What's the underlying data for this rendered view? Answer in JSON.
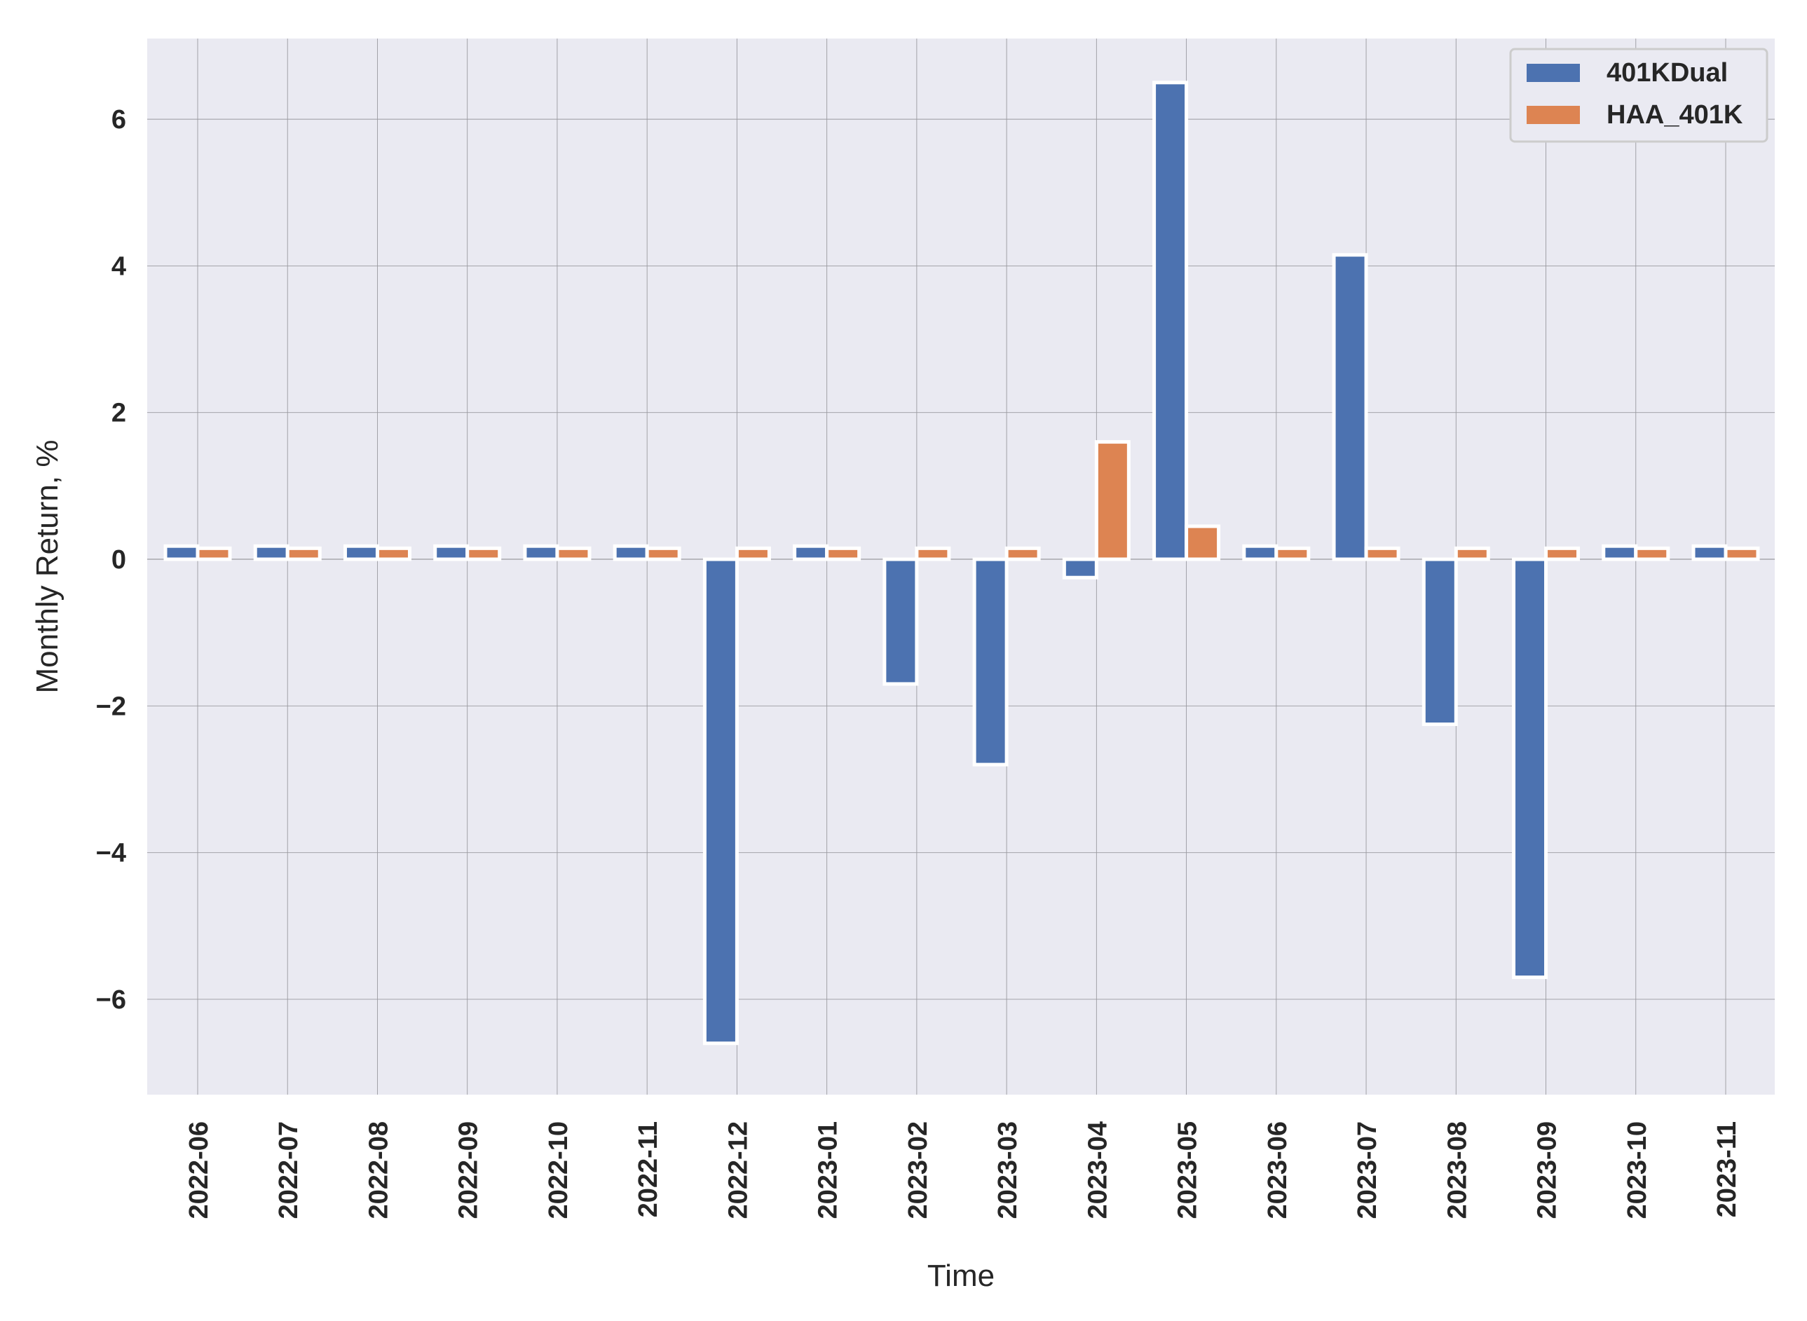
{
  "chart_data": {
    "type": "bar",
    "xlabel": "Time",
    "ylabel": "Monthly Return, %",
    "ylim": [
      -7.3,
      7.1
    ],
    "yticks": [
      -6,
      -4,
      -2,
      0,
      2,
      4,
      6
    ],
    "ytick_labels": [
      "−6",
      "−4",
      "−2",
      "0",
      "2",
      "4",
      "6"
    ],
    "grid": true,
    "legend_position": "top-right",
    "categories": [
      "2022-06",
      "2022-07",
      "2022-08",
      "2022-09",
      "2022-10",
      "2022-11",
      "2022-12",
      "2023-01",
      "2023-02",
      "2023-03",
      "2023-04",
      "2023-05",
      "2023-06",
      "2023-07",
      "2023-08",
      "2023-09",
      "2023-10",
      "2023-11"
    ],
    "series": [
      {
        "name": "401KDual",
        "color": "#4c72b0",
        "values": [
          0.18,
          0.18,
          0.18,
          0.18,
          0.18,
          0.18,
          -6.6,
          0.18,
          -1.7,
          -2.8,
          -0.25,
          6.5,
          0.18,
          4.15,
          -2.25,
          -5.7,
          0.18,
          0.18
        ]
      },
      {
        "name": "HAA_401K",
        "color": "#dd8452",
        "values": [
          0.15,
          0.15,
          0.15,
          0.15,
          0.15,
          0.15,
          0.15,
          0.15,
          0.15,
          0.15,
          1.6,
          0.45,
          0.15,
          0.15,
          0.15,
          0.15,
          0.15,
          0.15
        ]
      }
    ]
  }
}
